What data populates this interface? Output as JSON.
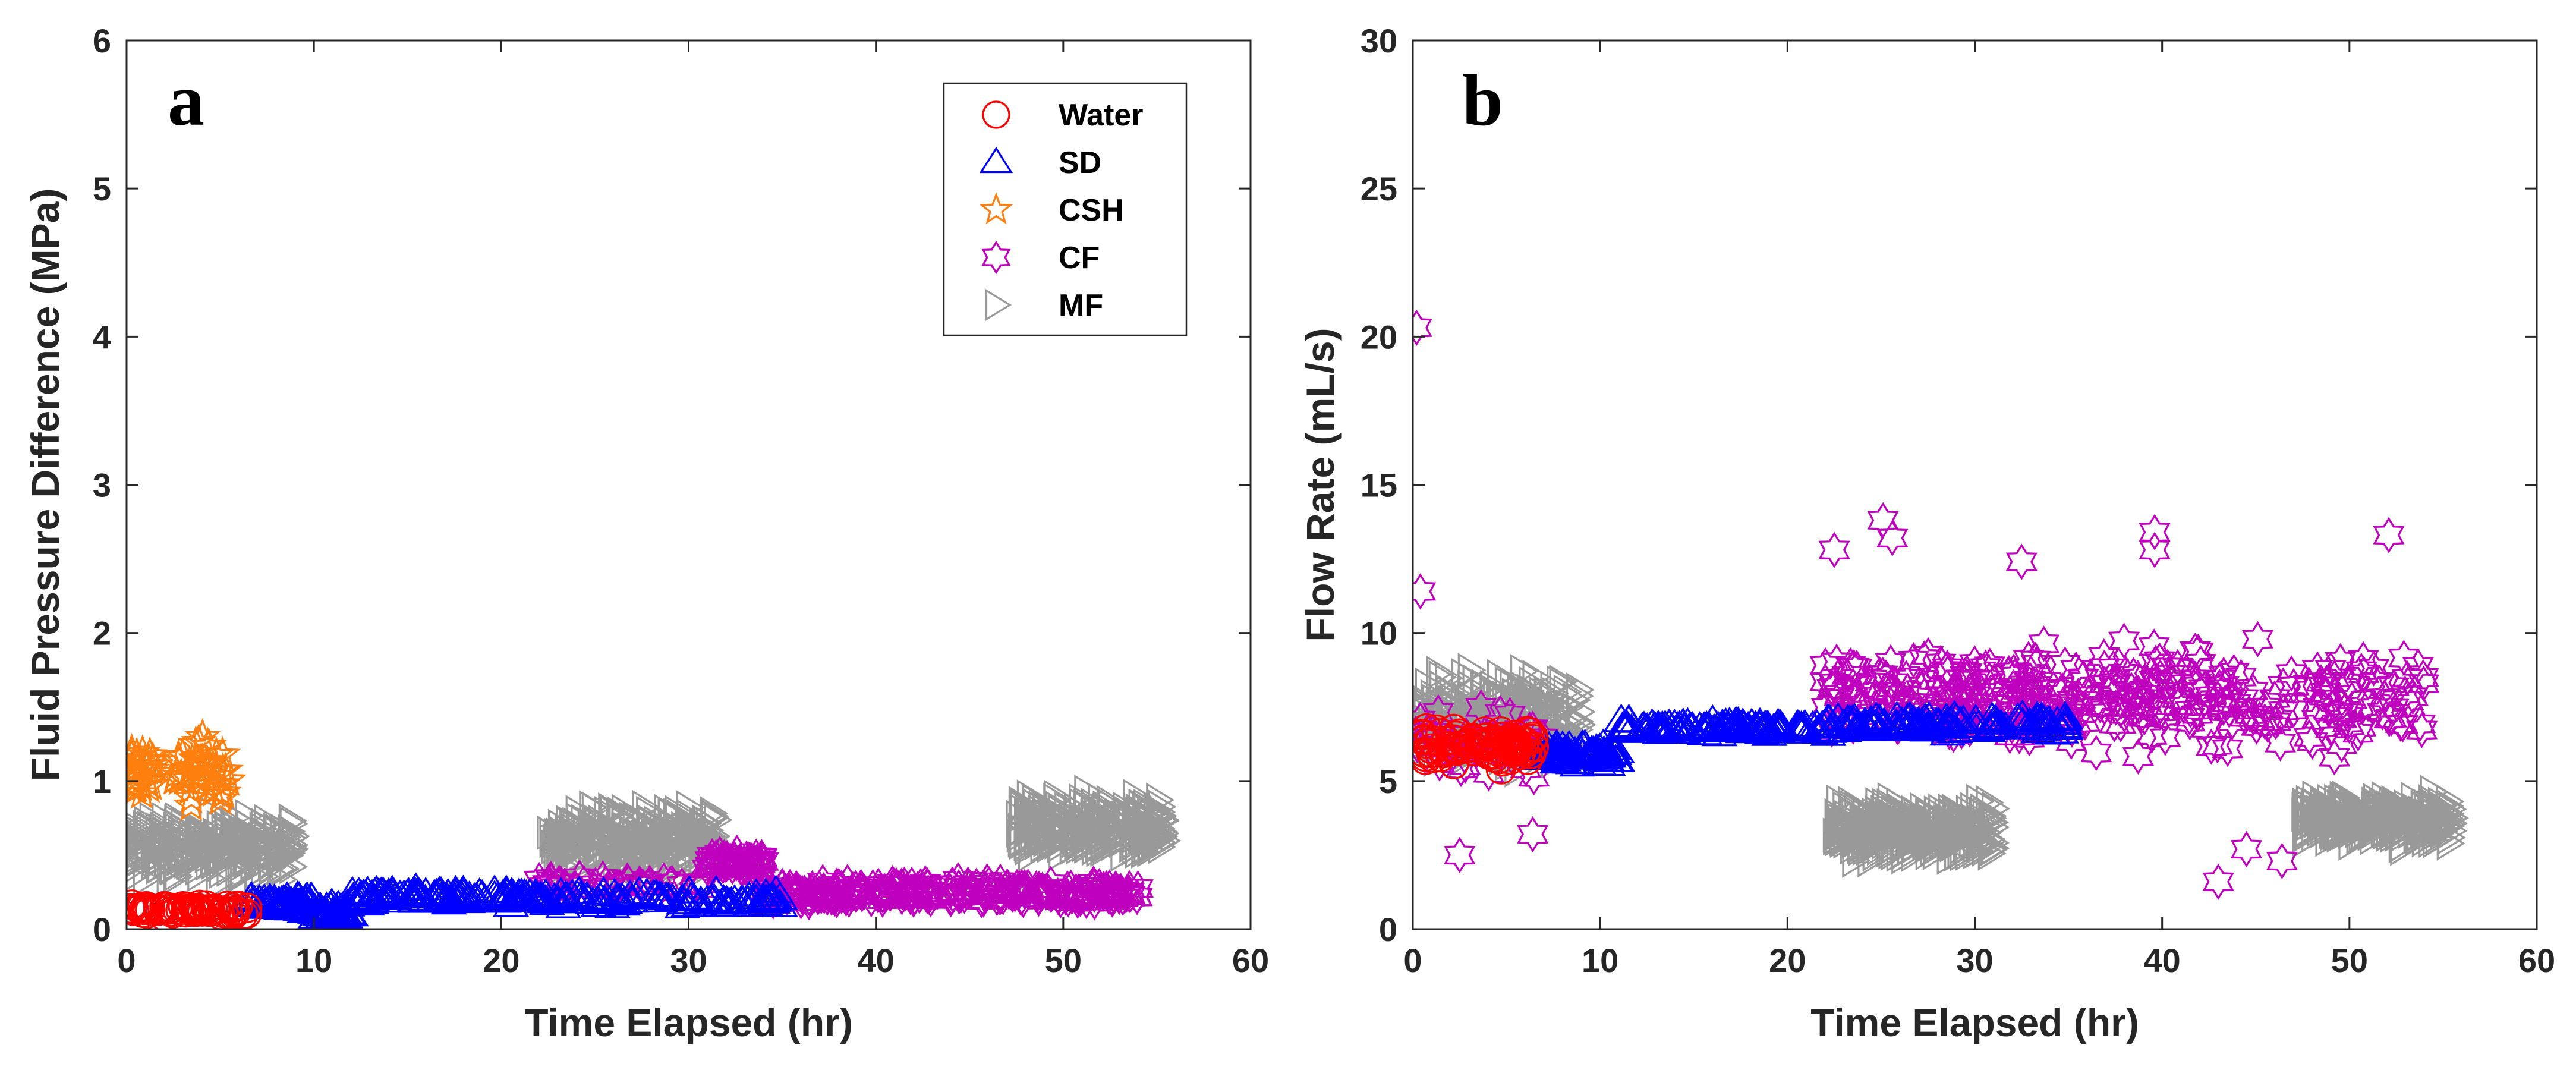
{
  "colors": {
    "Water": "#ff0000",
    "SD": "#0000ff",
    "CSH": "#ff7f0e",
    "CF": "#bf00bf",
    "MF": "#999999"
  },
  "legend": [
    {
      "name": "Water",
      "marker": "circle"
    },
    {
      "name": "SD",
      "marker": "triangle-up"
    },
    {
      "name": "CSH",
      "marker": "star5"
    },
    {
      "name": "CF",
      "marker": "hexagram"
    },
    {
      "name": "MF",
      "marker": "triangle-right"
    }
  ],
  "chart_data": [
    {
      "type": "scatter",
      "panel": "a",
      "title": "",
      "xlabel": "Time Elapsed (hr)",
      "ylabel": "Fluid Pressure Difference (MPa)",
      "xlim": [
        0,
        60
      ],
      "ylim": [
        0,
        6
      ],
      "xticks": [
        0,
        10,
        20,
        30,
        40,
        50,
        60
      ],
      "yticks": [
        0,
        1,
        2,
        3,
        4,
        5,
        6
      ],
      "legend_position": "top-right",
      "series": [
        {
          "name": "Water",
          "segments": [
            {
              "x0": 0.1,
              "x1": 6.5,
              "y": 0.13,
              "spread": 0.06,
              "n": 70
            }
          ]
        },
        {
          "name": "SD",
          "segments": [
            {
              "x0": 6.5,
              "x1": 10.0,
              "y": 0.18,
              "spread": 0.08,
              "n": 60
            },
            {
              "x0": 10.0,
              "x1": 12.0,
              "y": 0.1,
              "spread": 0.09,
              "n": 50
            },
            {
              "x0": 12.0,
              "x1": 22.0,
              "y": 0.22,
              "spread": 0.07,
              "n": 120
            },
            {
              "x0": 22.0,
              "x1": 35.0,
              "y": 0.2,
              "spread": 0.07,
              "n": 90
            }
          ]
        },
        {
          "name": "CSH",
          "segments": [
            {
              "x0": 0.2,
              "x1": 1.5,
              "y": 1.05,
              "spread": 0.35,
              "n": 28
            },
            {
              "x0": 2.5,
              "x1": 5.5,
              "y": 1.05,
              "spread": 0.35,
              "n": 45
            }
          ]
        },
        {
          "name": "CF",
          "segments": [
            {
              "x0": 22.0,
              "x1": 31.0,
              "y": 0.3,
              "spread": 0.07,
              "n": 40
            },
            {
              "x0": 31.0,
              "x1": 34.0,
              "y": 0.45,
              "spread": 0.08,
              "n": 60
            },
            {
              "x0": 34.0,
              "x1": 54.0,
              "y": 0.25,
              "spread": 0.1,
              "n": 260
            }
          ]
        },
        {
          "name": "MF",
          "segments": [
            {
              "x0": 0.1,
              "x1": 9.0,
              "y": 0.55,
              "spread": 0.3,
              "n": 260
            },
            {
              "x0": 22.5,
              "x1": 31.5,
              "y": 0.6,
              "spread": 0.3,
              "n": 280
            },
            {
              "x0": 47.5,
              "x1": 55.5,
              "y": 0.68,
              "spread": 0.3,
              "n": 250
            }
          ]
        }
      ]
    },
    {
      "type": "scatter",
      "panel": "b",
      "title": "",
      "xlabel": "Time Elapsed (hr)",
      "ylabel": "Flow Rate (mL/s)",
      "xlim": [
        0,
        60
      ],
      "ylim": [
        0,
        30
      ],
      "xticks": [
        0,
        10,
        20,
        30,
        40,
        50,
        60
      ],
      "yticks": [
        0,
        5,
        10,
        15,
        20,
        25,
        30
      ],
      "series": [
        {
          "name": "Water",
          "segments": [
            {
              "x0": 0.5,
              "x1": 6.5,
              "y": 6.2,
              "spread": 0.9,
              "n": 100
            }
          ]
        },
        {
          "name": "SD",
          "segments": [
            {
              "x0": 6.5,
              "x1": 11.0,
              "y": 5.9,
              "spread": 0.5,
              "n": 80
            },
            {
              "x0": 11.0,
              "x1": 22.0,
              "y": 6.8,
              "spread": 0.3,
              "n": 120
            },
            {
              "x0": 22.0,
              "x1": 35.0,
              "y": 6.9,
              "spread": 0.4,
              "n": 120
            }
          ]
        },
        {
          "name": "CF",
          "points": [
            [
              0.2,
              20.3
            ],
            [
              0.4,
              11.4
            ],
            [
              2.5,
              2.5
            ],
            [
              6.4,
              3.2
            ],
            [
              22.5,
              12.8
            ],
            [
              25.1,
              13.8
            ],
            [
              25.6,
              13.2
            ],
            [
              32.5,
              12.4
            ],
            [
              39.6,
              13.4
            ],
            [
              39.6,
              12.8
            ],
            [
              43.0,
              1.6
            ],
            [
              44.5,
              2.7
            ],
            [
              46.4,
              2.3
            ],
            [
              52.1,
              13.3
            ],
            [
              49.2,
              5.8
            ]
          ],
          "segments": [
            {
              "x0": 0.1,
              "x1": 7.0,
              "y": 6.3,
              "spread": 2.0,
              "n": 35
            },
            {
              "x0": 22.0,
              "x1": 54.0,
              "y": 7.8,
              "spread": 2.4,
              "n": 340
            }
          ]
        },
        {
          "name": "MF",
          "segments": [
            {
              "x0": 0.0,
              "x1": 9.0,
              "y": 7.2,
              "spread": 2.2,
              "n": 240
            },
            {
              "x0": 22.5,
              "x1": 31.0,
              "y": 3.3,
              "spread": 1.3,
              "n": 300
            },
            {
              "x0": 47.5,
              "x1": 55.5,
              "y": 3.7,
              "spread": 1.2,
              "n": 300
            }
          ]
        }
      ]
    }
  ]
}
